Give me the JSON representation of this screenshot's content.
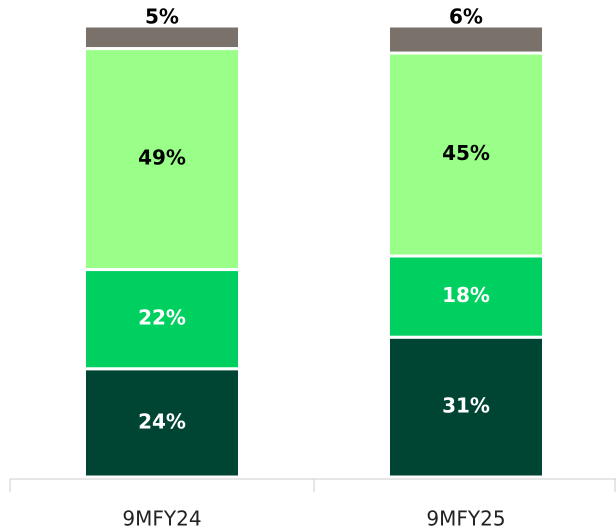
{
  "chart_data": {
    "type": "stacked_bar",
    "categories": [
      "9MFY24",
      "9MFY25"
    ],
    "series": [
      {
        "color": "#004433",
        "label_color": "#ffffff",
        "values": [
          24,
          31
        ],
        "value_labels": [
          "24%",
          "31%"
        ]
      },
      {
        "color": "#00d060",
        "label_color": "#ffffff",
        "values": [
          22,
          18
        ],
        "value_labels": [
          "22%",
          "18%"
        ]
      },
      {
        "color": "#99ff88",
        "label_color": "#000000",
        "values": [
          49,
          45
        ],
        "value_labels": [
          "49%",
          "45%"
        ]
      },
      {
        "color": "#7a716b",
        "label_color": "#000000",
        "values": [
          5,
          6
        ],
        "value_labels": [
          "5%",
          "6%"
        ]
      }
    ],
    "ylim": [
      0,
      100
    ]
  }
}
